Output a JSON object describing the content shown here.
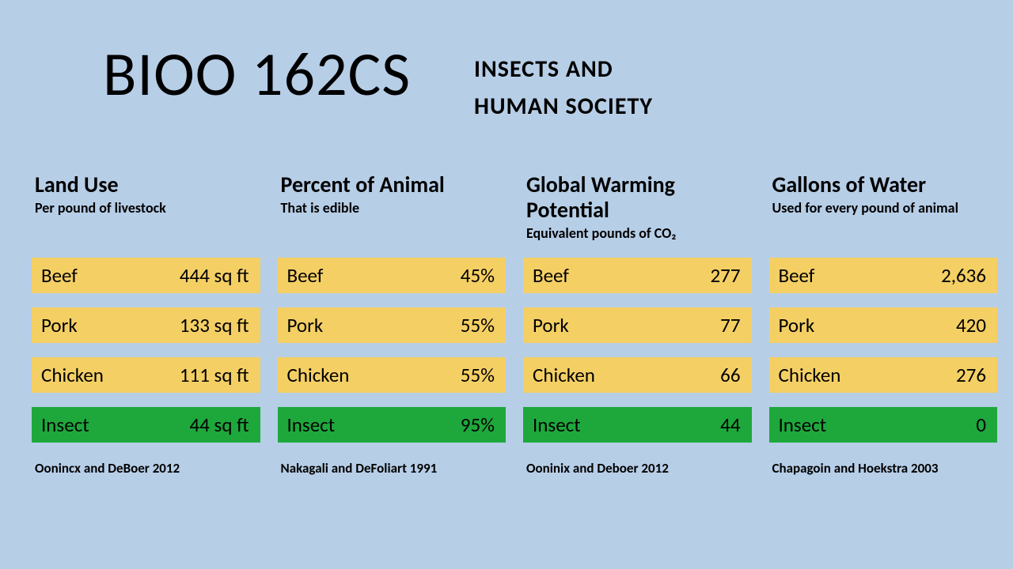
{
  "background_color": "#b7cee7",
  "text_color": "#000000",
  "header": {
    "course_code": "BIOO 162CS",
    "course_title_line1": "INSECTS AND",
    "course_title_line2": "HUMAN SOCIETY",
    "code_fontsize": 78,
    "title_fontsize": 30
  },
  "row_colors": {
    "normal": "#f4cf64",
    "highlight": "#1ea83c"
  },
  "columns": [
    {
      "title": "Land Use",
      "subtitle": "Per pound of livestock",
      "citation": "Oonincx and DeBoer 2012",
      "rows": [
        {
          "label": "Beef",
          "value": "444 sq ft",
          "highlight": false
        },
        {
          "label": "Pork",
          "value": "133 sq ft",
          "highlight": false
        },
        {
          "label": "Chicken",
          "value": "111 sq ft",
          "highlight": false
        },
        {
          "label": "Insect",
          "value": "44 sq ft",
          "highlight": true
        }
      ]
    },
    {
      "title": "Percent of Animal",
      "subtitle": "That is edible",
      "citation": "Nakagali and DeFoliart 1991",
      "rows": [
        {
          "label": "Beef",
          "value": "45%",
          "highlight": false
        },
        {
          "label": "Pork",
          "value": "55%",
          "highlight": false
        },
        {
          "label": "Chicken",
          "value": "55%",
          "highlight": false
        },
        {
          "label": "Insect",
          "value": "95%",
          "highlight": true
        }
      ]
    },
    {
      "title": "Global Warming Potential",
      "subtitle": "Equivalent pounds of CO₂",
      "citation": "Ooninix and Deboer 2012",
      "rows": [
        {
          "label": "Beef",
          "value": "277",
          "highlight": false
        },
        {
          "label": "Pork",
          "value": "77",
          "highlight": false
        },
        {
          "label": "Chicken",
          "value": "66",
          "highlight": false
        },
        {
          "label": "Insect",
          "value": "44",
          "highlight": true
        }
      ]
    },
    {
      "title": "Gallons of Water",
      "subtitle": "Used for every pound of animal",
      "citation": "Chapagoin and Hoekstra 2003",
      "rows": [
        {
          "label": "Beef",
          "value": "2,636",
          "highlight": false
        },
        {
          "label": "Pork",
          "value": "420",
          "highlight": false
        },
        {
          "label": "Chicken",
          "value": "276",
          "highlight": false
        },
        {
          "label": "Insect",
          "value": "0",
          "highlight": true
        }
      ]
    }
  ]
}
